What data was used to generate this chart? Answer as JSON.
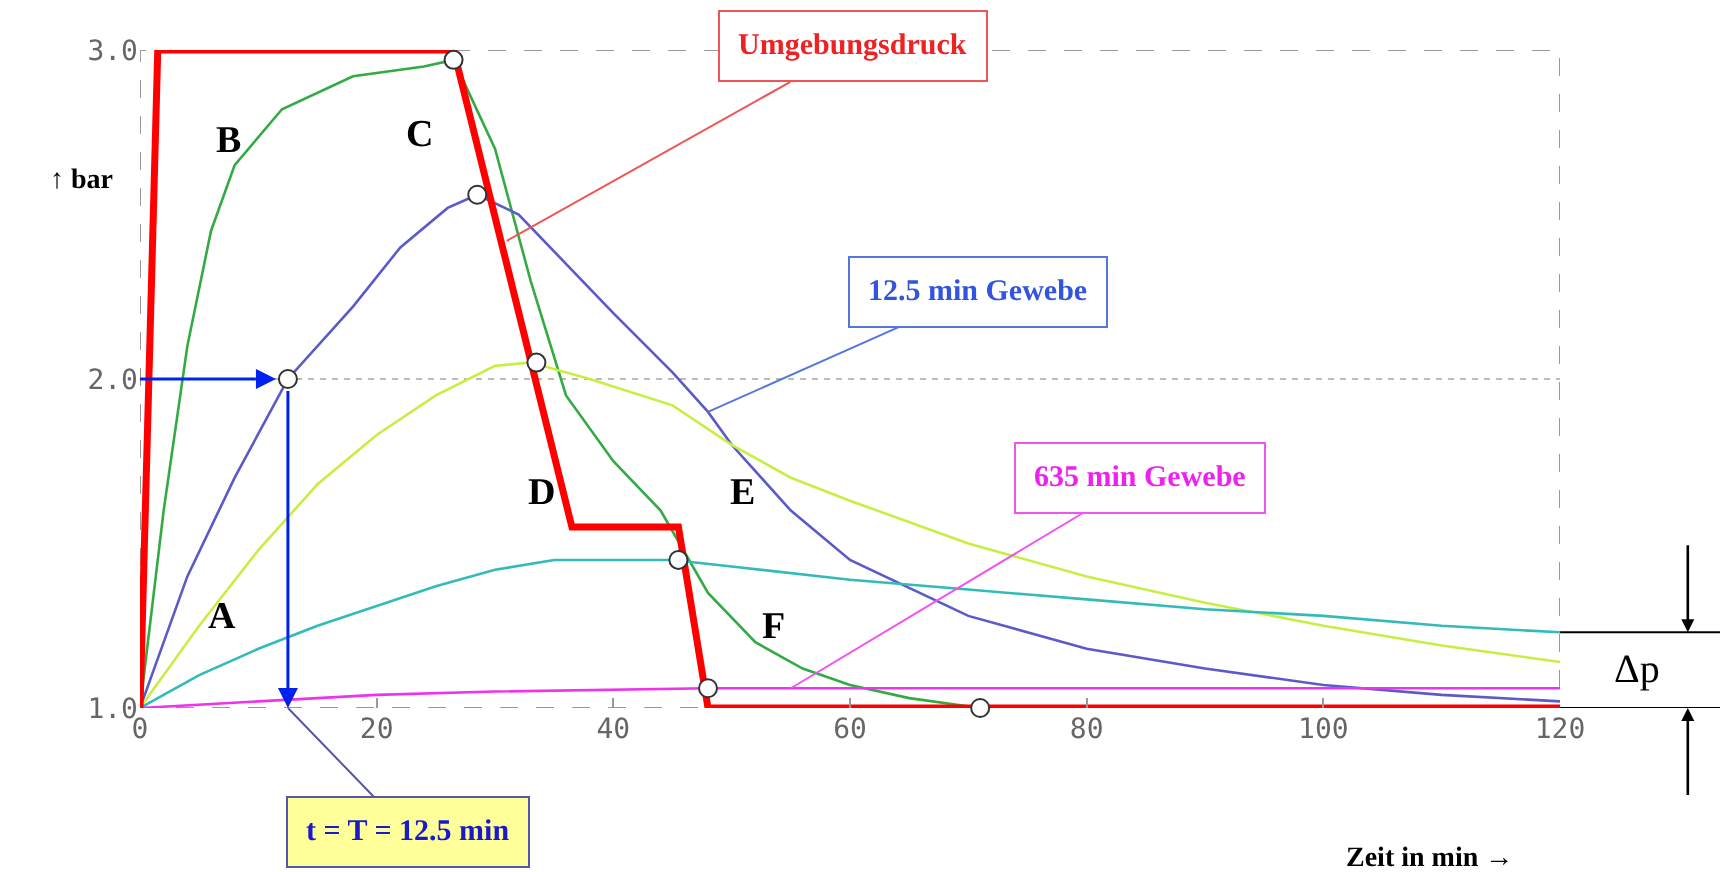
{
  "chart_data": {
    "type": "line",
    "xlabel": "Zeit in min →",
    "ylabel": "↑ bar",
    "xlim": [
      0,
      120
    ],
    "ylim": [
      1,
      3
    ],
    "xticks": [
      0,
      20,
      40,
      60,
      80,
      100,
      120
    ],
    "yticks": [
      {
        "value": 1,
        "label": "1.0"
      },
      {
        "value": 2,
        "label": "2.0"
      },
      {
        "value": 3,
        "label": "3.0"
      }
    ],
    "grid": "y",
    "marker": "none",
    "series": [
      {
        "color": "#33aa44",
        "x": [
          0,
          2,
          4,
          6,
          8,
          12,
          18,
          24,
          26.5,
          30,
          33,
          36,
          40,
          44,
          48,
          52,
          56,
          60,
          65,
          71
        ],
        "values": [
          1,
          1.6,
          2.1,
          2.45,
          2.65,
          2.82,
          2.92,
          2.95,
          2.97,
          2.7,
          2.3,
          1.95,
          1.75,
          1.6,
          1.35,
          1.2,
          1.12,
          1.07,
          1.03,
          1
        ]
      },
      {
        "color": "#5a5ac8",
        "x": [
          0,
          4,
          8,
          12.5,
          18,
          22,
          26,
          28.5,
          32,
          36,
          40,
          45,
          48,
          50,
          55,
          60,
          70,
          80,
          90,
          100,
          110,
          120
        ],
        "values": [
          1,
          1.4,
          1.7,
          2,
          2.22,
          2.4,
          2.52,
          2.56,
          2.5,
          2.35,
          2.2,
          2.02,
          1.9,
          1.8,
          1.6,
          1.45,
          1.28,
          1.18,
          1.12,
          1.07,
          1.04,
          1.02
        ]
      },
      {
        "color": "#c8ee44",
        "x": [
          0,
          5,
          10,
          15,
          20,
          25,
          30,
          33,
          38,
          45,
          50,
          55,
          60,
          70,
          80,
          90,
          100,
          110,
          120
        ],
        "values": [
          1,
          1.25,
          1.48,
          1.68,
          1.83,
          1.95,
          2.04,
          2.05,
          2,
          1.92,
          1.8,
          1.7,
          1.63,
          1.5,
          1.4,
          1.32,
          1.25,
          1.19,
          1.14
        ]
      },
      {
        "color": "#33bbbb",
        "x": [
          0,
          5,
          10,
          15,
          20,
          25,
          30,
          35,
          45,
          50,
          60,
          70,
          80,
          90,
          100,
          110,
          120
        ],
        "values": [
          1,
          1.1,
          1.18,
          1.25,
          1.31,
          1.37,
          1.42,
          1.45,
          1.45,
          1.43,
          1.39,
          1.36,
          1.33,
          1.3,
          1.28,
          1.25,
          1.23
        ]
      },
      {
        "color": "#ee33ee",
        "x": [
          0,
          10,
          20,
          30,
          48,
          120
        ],
        "values": [
          1,
          1.02,
          1.04,
          1.05,
          1.06,
          1.06
        ]
      },
      {
        "color": "#ff0000",
        "x": [
          0,
          1.5,
          26.5,
          36.5,
          45.5,
          48,
          120
        ],
        "values": [
          1,
          3,
          3,
          1.55,
          1.55,
          1,
          1
        ]
      },
      {
        "type": "scatter",
        "marker": "circle",
        "color": "#ffffff",
        "x": [
          12.5,
          26.5,
          28.5,
          33.5,
          45.5,
          48,
          71
        ],
        "values": [
          2,
          2.97,
          2.56,
          2.05,
          1.45,
          1.06,
          1
        ]
      }
    ],
    "annotations": [
      "A",
      "B",
      "C",
      "D",
      "E",
      "F",
      {
        "text": "Umgebungsdruck",
        "x": 31,
        "y": 2.42
      },
      {
        "text": "12.5 min Gewebe",
        "x": 48,
        "y": 1.9
      },
      {
        "text": "635 min Gewebe",
        "x": 55,
        "y": 1.06
      },
      {
        "text": "t = T = 12.5 min",
        "x": 12.5,
        "y": 1
      },
      "Δp"
    ]
  }
}
